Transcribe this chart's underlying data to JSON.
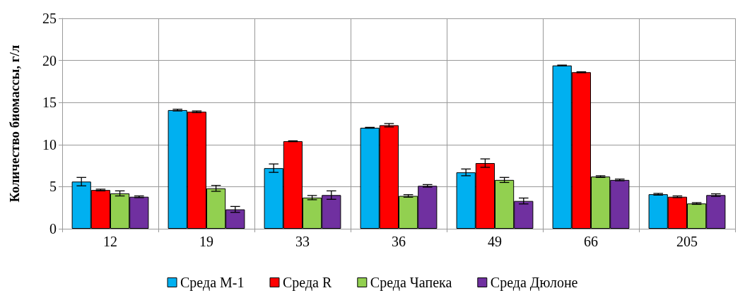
{
  "chart_data": {
    "type": "bar",
    "ylabel": "Количество биомассы, г/л",
    "categories": [
      "12",
      "19",
      "33",
      "36",
      "49",
      "66",
      "205"
    ],
    "series": [
      {
        "name": "Среда М-1",
        "color": "#00b0f0",
        "values": [
          5.6,
          14.1,
          7.2,
          12.0,
          6.7,
          19.4,
          4.1
        ],
        "errors": [
          0.5,
          0.1,
          0.5,
          0.05,
          0.4,
          0.05,
          0.1
        ]
      },
      {
        "name": "Среда R",
        "color": "#ff0000",
        "values": [
          4.6,
          13.9,
          10.4,
          12.3,
          7.8,
          18.6,
          3.8
        ],
        "errors": [
          0.1,
          0.1,
          0.05,
          0.2,
          0.5,
          0.05,
          0.1
        ]
      },
      {
        "name": "Среда Чапека",
        "color": "#92d050",
        "values": [
          4.2,
          4.8,
          3.7,
          3.9,
          5.8,
          6.2,
          3.0
        ],
        "errors": [
          0.3,
          0.35,
          0.25,
          0.15,
          0.3,
          0.1,
          0.1
        ]
      },
      {
        "name": "Среда Дюлоне",
        "color": "#7030a0",
        "values": [
          3.8,
          2.3,
          4.0,
          5.1,
          3.3,
          5.8,
          4.0
        ],
        "errors": [
          0.1,
          0.35,
          0.5,
          0.15,
          0.35,
          0.1,
          0.15
        ]
      }
    ],
    "ylim": [
      0,
      25
    ],
    "yticks": [
      0,
      5,
      10,
      15,
      20,
      25
    ],
    "grid": true,
    "legend": "bottom"
  }
}
